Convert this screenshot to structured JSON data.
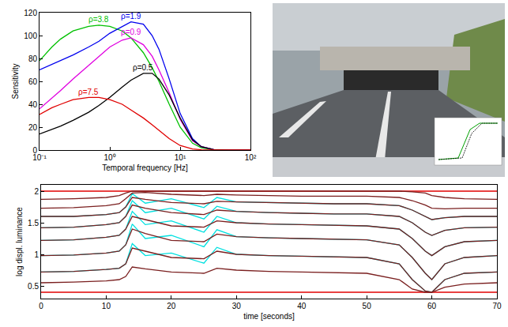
{
  "chart_data": [
    {
      "type": "line",
      "x_title": "Temporal frequency [Hz]",
      "y_title": "Sensitivity",
      "log": "x",
      "grid": false,
      "x": [
        0.1,
        0.15,
        0.2,
        0.3,
        0.5,
        0.7,
        1,
        1.5,
        2,
        3,
        4,
        5,
        7,
        10,
        15,
        20,
        30,
        50,
        100
      ],
      "xlim": [
        0.1,
        100
      ],
      "xticks": [
        {
          "value": 0.1,
          "label": "10⁻¹"
        },
        {
          "value": 1,
          "label": "10⁰"
        },
        {
          "value": 10,
          "label": "10¹"
        },
        {
          "value": 100,
          "label": "10²"
        }
      ],
      "ylim": [
        0,
        120
      ],
      "yticks": [
        0,
        20,
        40,
        60,
        80,
        100,
        120
      ],
      "series": [
        {
          "name": "ρ=3.8",
          "color": "#00c000",
          "values": [
            78,
            90,
            97,
            104,
            108,
            109,
            108,
            104,
            98,
            85,
            72,
            60,
            40,
            20,
            6,
            2,
            0.3,
            0,
            0
          ]
        },
        {
          "name": "ρ=1.9",
          "color": "#0000ee",
          "values": [
            70,
            75,
            78,
            83,
            90,
            95,
            102,
            108,
            112,
            110,
            100,
            88,
            62,
            32,
            10,
            3,
            0.5,
            0,
            0
          ]
        },
        {
          "name": "ρ=0.9",
          "color": "#e000e0",
          "values": [
            36,
            45,
            52,
            62,
            74,
            82,
            90,
            96,
            98,
            92,
            82,
            70,
            50,
            27,
            8,
            3,
            0.5,
            0,
            0
          ]
        },
        {
          "name": "ρ=0.5",
          "color": "#000000",
          "values": [
            14,
            18,
            21,
            26,
            33,
            39,
            46,
            55,
            61,
            67,
            67,
            62,
            48,
            28,
            9,
            3,
            0.5,
            0,
            0
          ]
        },
        {
          "name": "ρ=7.5",
          "color": "#e00000",
          "values": [
            31,
            37,
            40,
            44,
            46,
            46,
            44,
            40,
            35,
            28,
            22,
            17,
            10,
            4,
            1,
            0.3,
            0,
            0,
            0
          ]
        }
      ]
    },
    {
      "type": "line",
      "x_title": "time [seconds]",
      "y_title": "log displ. luminance",
      "grid": false,
      "x": [
        0,
        5,
        10,
        12,
        13,
        14,
        16,
        20,
        25,
        27,
        30,
        35,
        40,
        45,
        50,
        55,
        57,
        59,
        60,
        62,
        65,
        70
      ],
      "xlim": [
        0,
        70
      ],
      "xticks": [
        0,
        10,
        20,
        30,
        40,
        50,
        60,
        70
      ],
      "ylim": [
        0.3,
        2.1
      ],
      "yticks": [
        0.5,
        1,
        1.5,
        2
      ],
      "series": [
        {
          "color": "#00e0e0",
          "values": [
            1.6,
            1.6,
            1.63,
            1.66,
            1.75,
            1.96,
            1.81,
            1.88,
            1.74,
            1.9,
            1.83,
            1.82,
            1.81,
            1.8,
            1.8,
            1.77,
            1.7,
            1.6,
            1.55,
            1.58,
            1.6,
            1.6
          ]
        },
        {
          "color": "#00e0e0",
          "values": [
            1.42,
            1.43,
            1.47,
            1.5,
            1.6,
            1.85,
            1.66,
            1.73,
            1.56,
            1.76,
            1.68,
            1.66,
            1.65,
            1.64,
            1.64,
            1.6,
            1.5,
            1.35,
            1.3,
            1.38,
            1.42,
            1.43
          ]
        },
        {
          "color": "#00e0e0",
          "values": [
            1.22,
            1.23,
            1.27,
            1.3,
            1.4,
            1.68,
            1.47,
            1.53,
            1.35,
            1.6,
            1.5,
            1.48,
            1.47,
            1.46,
            1.45,
            1.4,
            1.25,
            1.05,
            0.98,
            1.12,
            1.2,
            1.22
          ]
        },
        {
          "color": "#00e0e0",
          "values": [
            0.98,
            0.99,
            1.02,
            1.05,
            1.15,
            1.48,
            1.25,
            1.3,
            1.12,
            1.39,
            1.28,
            1.26,
            1.25,
            1.24,
            1.23,
            1.15,
            0.95,
            0.7,
            0.6,
            0.85,
            0.95,
            0.98
          ]
        },
        {
          "color": "#00e0e0",
          "values": [
            0.72,
            0.73,
            0.76,
            0.78,
            0.85,
            1.17,
            0.98,
            1.02,
            0.86,
            1.11,
            1.0,
            0.98,
            0.97,
            0.96,
            0.95,
            0.85,
            0.6,
            0.42,
            0.4,
            0.6,
            0.7,
            0.72
          ]
        },
        {
          "color": "#e00000",
          "values": [
            2,
            2,
            2,
            2,
            2,
            2,
            2,
            2,
            2,
            2,
            2,
            2,
            2,
            2,
            2,
            2,
            2,
            2,
            2,
            2,
            2,
            2
          ]
        },
        {
          "color": "#e00000",
          "values": [
            0.4,
            0.4,
            0.4,
            0.4,
            0.4,
            0.4,
            0.4,
            0.4,
            0.4,
            0.4,
            0.4,
            0.4,
            0.4,
            0.4,
            0.4,
            0.4,
            0.4,
            0.4,
            0.4,
            0.4,
            0.4,
            0.4
          ]
        },
        {
          "color": "#7a1f1f",
          "values": [
            1.87,
            1.88,
            1.9,
            1.93,
            1.97,
            2.0,
            2.0,
            2.0,
            2.0,
            2.0,
            2.0,
            2.0,
            2.0,
            2.0,
            2.0,
            2.0,
            1.99,
            1.97,
            1.93,
            1.9,
            1.88,
            1.87
          ]
        },
        {
          "color": "#7a1f1f",
          "values": [
            1.73,
            1.74,
            1.77,
            1.8,
            1.88,
            1.97,
            1.98,
            1.95,
            1.93,
            1.95,
            1.94,
            1.93,
            1.92,
            1.92,
            1.92,
            1.9,
            1.85,
            1.78,
            1.73,
            1.72,
            1.73,
            1.73
          ]
        },
        {
          "color": "#7a1f1f",
          "values": [
            1.6,
            1.6,
            1.63,
            1.66,
            1.75,
            1.9,
            1.87,
            1.82,
            1.8,
            1.84,
            1.83,
            1.82,
            1.81,
            1.8,
            1.8,
            1.77,
            1.7,
            1.6,
            1.55,
            1.58,
            1.6,
            1.6
          ]
        },
        {
          "color": "#7a1f1f",
          "values": [
            1.42,
            1.43,
            1.47,
            1.5,
            1.6,
            1.78,
            1.73,
            1.66,
            1.63,
            1.7,
            1.68,
            1.66,
            1.65,
            1.64,
            1.64,
            1.6,
            1.5,
            1.35,
            1.3,
            1.38,
            1.42,
            1.43
          ]
        },
        {
          "color": "#7a1f1f",
          "values": [
            1.22,
            1.23,
            1.27,
            1.3,
            1.4,
            1.6,
            1.55,
            1.45,
            1.43,
            1.53,
            1.5,
            1.48,
            1.47,
            1.46,
            1.45,
            1.4,
            1.25,
            1.05,
            0.98,
            1.12,
            1.2,
            1.22
          ]
        },
        {
          "color": "#7a1f1f",
          "values": [
            0.98,
            0.99,
            1.02,
            1.05,
            1.15,
            1.4,
            1.33,
            1.22,
            1.2,
            1.32,
            1.28,
            1.26,
            1.25,
            1.24,
            1.23,
            1.15,
            0.95,
            0.7,
            0.6,
            0.85,
            0.95,
            0.98
          ]
        },
        {
          "color": "#7a1f1f",
          "values": [
            0.72,
            0.73,
            0.76,
            0.78,
            0.85,
            1.1,
            1.05,
            0.95,
            0.93,
            1.05,
            1.0,
            0.98,
            0.97,
            0.96,
            0.95,
            0.85,
            0.6,
            0.42,
            0.4,
            0.6,
            0.7,
            0.72
          ]
        },
        {
          "color": "#7a1f1f",
          "values": [
            0.55,
            0.56,
            0.58,
            0.6,
            0.65,
            0.8,
            0.77,
            0.72,
            0.7,
            0.78,
            0.75,
            0.73,
            0.72,
            0.71,
            0.7,
            0.6,
            0.45,
            0.4,
            0.4,
            0.48,
            0.53,
            0.55
          ]
        }
      ]
    }
  ]
}
